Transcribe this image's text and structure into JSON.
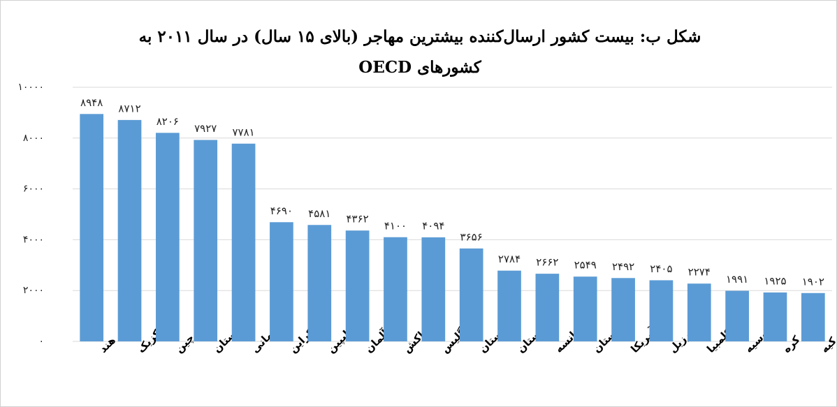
{
  "chart_data": {
    "type": "bar",
    "title": "شکل ب: بیست کشور ارسال‌کننده بیشترین مهاجر (بالای ۱۵ سال) در سال ۲۰۱۱ به کشورهای OECD",
    "categories": [
      "هند",
      "مکزیک",
      "چین",
      "لهستان",
      "رومانی",
      "اوکراین",
      "فیلیپین",
      "آلمان",
      "مراکش",
      "انگلیس",
      "قزاقستان",
      "ازبکستان",
      "فرانسه",
      "پاکستان",
      "آمریکا",
      "برزیل",
      "کلمبیا",
      "روسیه",
      "کره",
      "ترکیه"
    ],
    "values": [
      8948,
      8712,
      8206,
      7927,
      7781,
      4690,
      4581,
      4362,
      4100,
      4094,
      3656,
      2784,
      2662,
      2549,
      2492,
      2405,
      2274,
      1991,
      1925,
      1902
    ],
    "value_labels": [
      "۸۹۴۸",
      "۸۷۱۲",
      "۸۲۰۶",
      "۷۹۲۷",
      "۷۷۸۱",
      "۴۶۹۰",
      "۴۵۸۱",
      "۴۳۶۲",
      "۴۱۰۰",
      "۴۰۹۴",
      "۳۶۵۶",
      "۲۷۸۴",
      "۲۶۶۲",
      "۲۵۴۹",
      "۲۴۹۲",
      "۲۴۰۵",
      "۲۲۷۴",
      "۱۹۹۱",
      "۱۹۲۵",
      "۱۹۰۲"
    ],
    "color": "#5b9bd5",
    "ylim": [
      0,
      10000
    ],
    "yticks": [
      {
        "value": 0,
        "label": "۰"
      },
      {
        "value": 2000,
        "label": "۲۰۰۰"
      },
      {
        "value": 4000,
        "label": "۴۰۰۰"
      },
      {
        "value": 6000,
        "label": "۶۰۰۰"
      },
      {
        "value": 8000,
        "label": "۸۰۰۰"
      },
      {
        "value": 10000,
        "label": "۱۰۰۰۰"
      }
    ],
    "grid": true
  }
}
